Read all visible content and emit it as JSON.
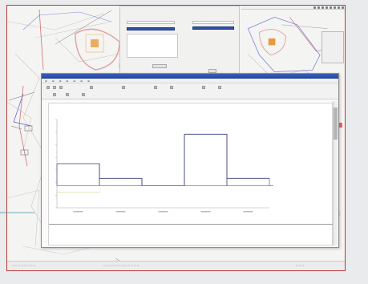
{
  "report": {
    "chart_title": "",
    "footer_title": "",
    "footer_subtitle": ""
  },
  "colors": {
    "frame_border": "#b23a3a",
    "title_bar": "#2d4fa6",
    "step_line": "#3a3f7a",
    "baseline_line": "#7d8b3c",
    "highlight": "#e89a3c",
    "scroll_marker": "#dd3333"
  },
  "chart_data": {
    "type": "line",
    "title": "",
    "xlabel": "",
    "ylabel": "",
    "categories": [],
    "series": [
      {
        "step_values": [
          0.6,
          0.4,
          0.3,
          1.0,
          0.4
        ]
      },
      {
        "baseline_values": [
          0.3,
          0.3,
          0.3,
          0.3,
          0.3
        ]
      }
    ],
    "ylim": [
      0,
      1.2
    ],
    "grid": false
  },
  "icons": {
    "window_close": "close-icon",
    "scroll": "scrollbar-icon"
  }
}
